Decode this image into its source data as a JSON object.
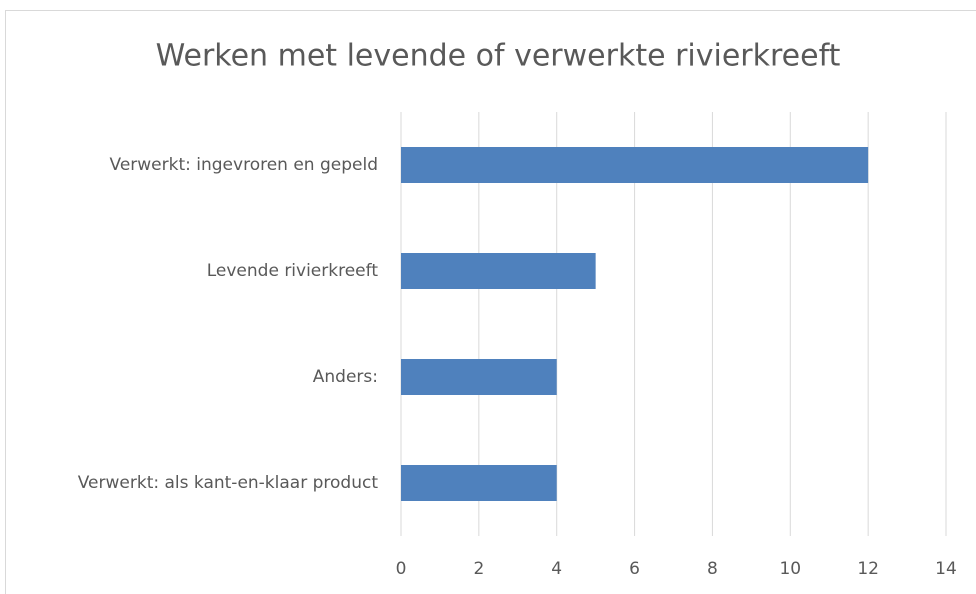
{
  "chart_data": {
    "type": "bar",
    "orientation": "horizontal",
    "title": "Werken met levende of verwerkte rivierkreeft",
    "categories": [
      "Verwerkt: ingevroren en gepeld",
      "Levende rivierkreeft",
      "Anders:",
      "Verwerkt: als kant-en-klaar product"
    ],
    "values": [
      12,
      5,
      4,
      4
    ],
    "color": "#4f81bd",
    "xlim": [
      0,
      14
    ],
    "xticks": [
      0,
      2,
      4,
      6,
      8,
      10,
      12,
      14
    ],
    "grid": true
  }
}
